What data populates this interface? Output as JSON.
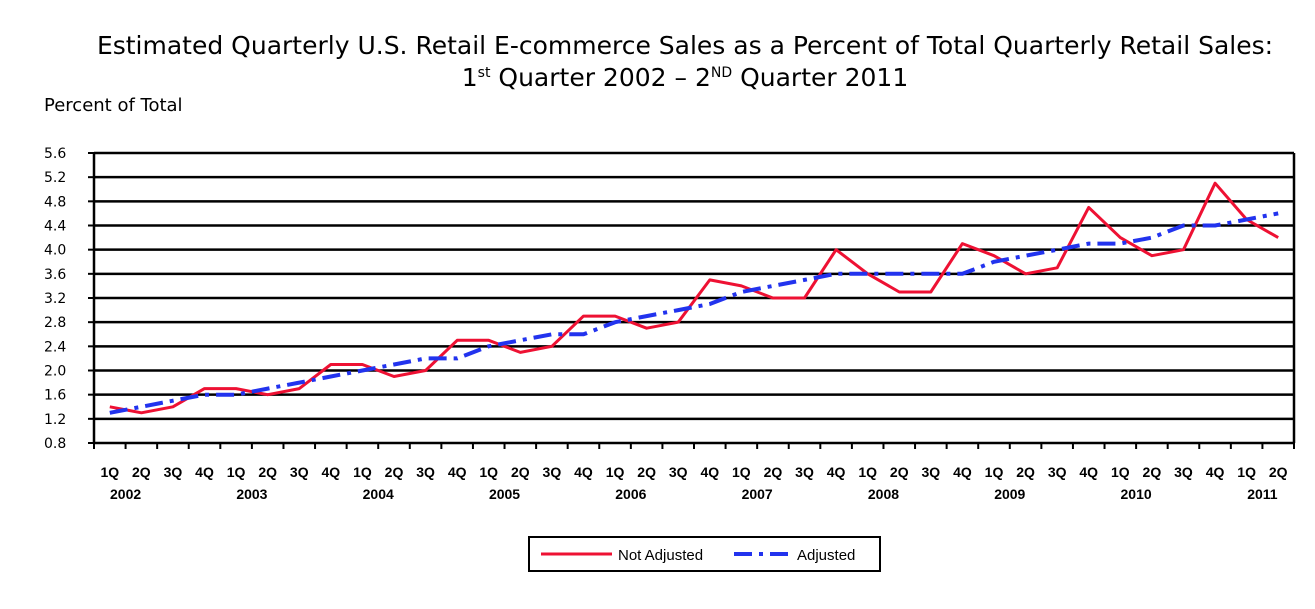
{
  "title": {
    "line1": "Estimated Quarterly U.S. Retail E-commerce Sales as a Percent of Total Quarterly Retail Sales:",
    "line2_pre": "1",
    "line2_sup1": "st",
    "line2_mid": " Quarter 2002 – 2",
    "line2_sup2": "ND",
    "line2_post": " Quarter 2011"
  },
  "chart_data": {
    "type": "line",
    "title": "Estimated Quarterly U.S. Retail E-commerce Sales as a Percent of Total Quarterly Retail Sales: 1st Quarter 2002 – 2ND Quarter 2011",
    "ylabel": "Percent of Total",
    "ylim": [
      0.8,
      5.6
    ],
    "yticks": [
      "0.8",
      "1.2",
      "1.6",
      "2.0",
      "2.4",
      "2.8",
      "3.2",
      "3.6",
      "4.0",
      "4.4",
      "4.8",
      "5.2",
      "5.6"
    ],
    "grid": true,
    "legend_position": "bottom-center",
    "quarter_labels": [
      "1Q",
      "2Q",
      "3Q",
      "4Q",
      "1Q",
      "2Q",
      "3Q",
      "4Q",
      "1Q",
      "2Q",
      "3Q",
      "4Q",
      "1Q",
      "2Q",
      "3Q",
      "4Q",
      "1Q",
      "2Q",
      "3Q",
      "4Q",
      "1Q",
      "2Q",
      "3Q",
      "4Q",
      "1Q",
      "2Q",
      "3Q",
      "4Q",
      "1Q",
      "2Q",
      "3Q",
      "4Q",
      "1Q",
      "2Q",
      "3Q",
      "4Q",
      "1Q",
      "2Q"
    ],
    "years": [
      "2002",
      "2003",
      "2004",
      "2005",
      "2006",
      "2007",
      "2008",
      "2009",
      "2010",
      "2011"
    ],
    "series": [
      {
        "name": "Not Adjusted",
        "color": "#ee1133",
        "style": "solid",
        "values": [
          1.4,
          1.3,
          1.4,
          1.7,
          1.7,
          1.6,
          1.7,
          2.1,
          2.1,
          1.9,
          2.0,
          2.5,
          2.5,
          2.3,
          2.4,
          2.9,
          2.9,
          2.7,
          2.8,
          3.5,
          3.4,
          3.2,
          3.2,
          4.0,
          3.6,
          3.3,
          3.3,
          4.1,
          3.9,
          3.6,
          3.7,
          4.7,
          4.2,
          3.9,
          4.0,
          5.1,
          4.5,
          4.2
        ]
      },
      {
        "name": "Adjusted",
        "color": "#2233ee",
        "style": "dashed",
        "values": [
          1.3,
          1.4,
          1.5,
          1.6,
          1.6,
          1.7,
          1.8,
          1.9,
          2.0,
          2.1,
          2.2,
          2.2,
          2.4,
          2.5,
          2.6,
          2.6,
          2.8,
          2.9,
          3.0,
          3.1,
          3.3,
          3.4,
          3.5,
          3.6,
          3.6,
          3.6,
          3.6,
          3.6,
          3.8,
          3.9,
          4.0,
          4.1,
          4.1,
          4.2,
          4.4,
          4.4,
          4.5,
          4.6
        ]
      }
    ]
  }
}
